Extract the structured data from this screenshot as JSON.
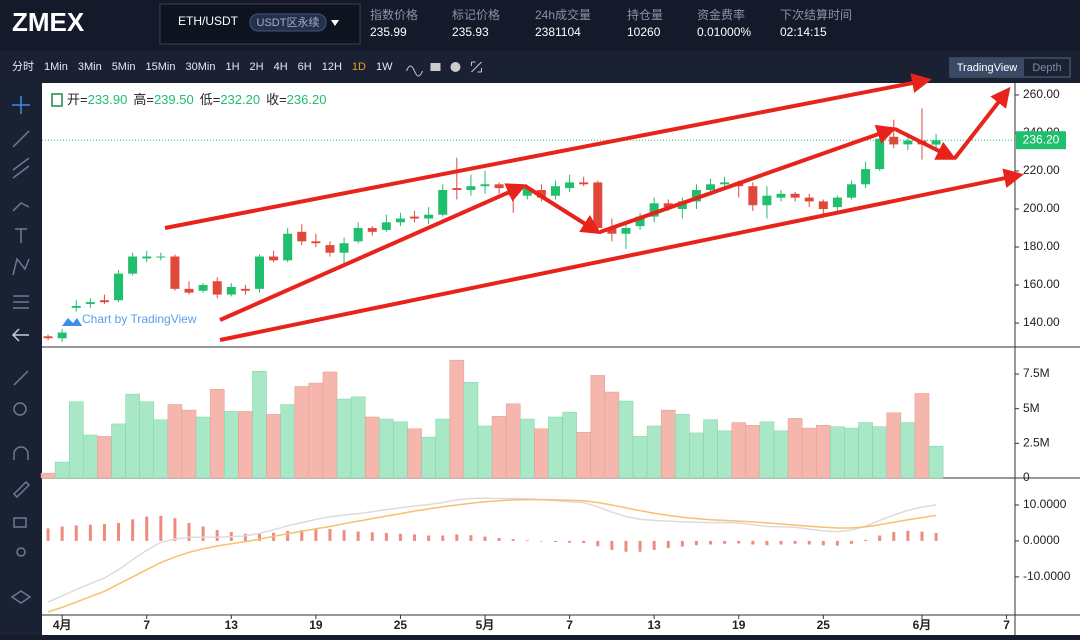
{
  "header": {
    "logo": "ZMEX",
    "symbol": "ETH/USDT",
    "contract": "USDT区永续",
    "stats": [
      {
        "label": "指数价格",
        "value": "235.99"
      },
      {
        "label": "标记价格",
        "value": "235.93"
      },
      {
        "label": "24h成交量",
        "value": "2381104"
      },
      {
        "label": "持仓量",
        "value": "10260"
      },
      {
        "label": "资金费率",
        "value": "0.01000%"
      },
      {
        "label": "下次结算时间",
        "value": "02:14:15"
      }
    ]
  },
  "toolbar": {
    "intervals": [
      "分时",
      "1Min",
      "3Min",
      "5Min",
      "15Min",
      "30Min",
      "1H",
      "2H",
      "4H",
      "6H",
      "12H",
      "1D",
      "1W"
    ],
    "active": "1D",
    "views": [
      "TradingView",
      "Depth"
    ],
    "active_view": "TradingView"
  },
  "chart": {
    "legend": [
      {
        "label": "开=",
        "value": "233.90"
      },
      {
        "label": "高=",
        "value": "239.50"
      },
      {
        "label": "低=",
        "value": "232.20"
      },
      {
        "label": "收=",
        "value": "236.20"
      }
    ],
    "watermark": "Chart by TradingView",
    "last_price_label": "236.20",
    "xlim": [
      -0.43,
      68.6
    ],
    "xticks": [
      {
        "value": 1,
        "label": "4月"
      },
      7,
      13,
      19,
      25,
      {
        "value": 31,
        "label": "5月"
      },
      {
        "value": 37,
        "label": "7"
      },
      {
        "value": 43,
        "label": "13"
      },
      {
        "value": 49,
        "label": "19"
      },
      {
        "value": 55,
        "label": "25"
      },
      {
        "value": 62,
        "label": "6月"
      },
      {
        "value": 68,
        "label": "7"
      }
    ],
    "price": {
      "ylim": [
        127.4,
        266.3
      ],
      "yticks": [
        {
          "value": 260,
          "label": "260.00"
        },
        {
          "value": 240,
          "label": "240.00"
        },
        {
          "value": 220,
          "label": "220.00"
        },
        {
          "value": 200,
          "label": "200.00"
        },
        {
          "value": 180,
          "label": "180.00"
        },
        {
          "value": 160,
          "label": "160.00"
        },
        {
          "value": 140,
          "label": "140.00"
        }
      ],
      "candles": [
        [
          133,
          134,
          131,
          132
        ],
        [
          132,
          137,
          130,
          135
        ],
        [
          148,
          152,
          146,
          149
        ],
        [
          150,
          153,
          148,
          151
        ],
        [
          152,
          155,
          150,
          151
        ],
        [
          152,
          168,
          151,
          166
        ],
        [
          166,
          177,
          165,
          175
        ],
        [
          174,
          178,
          172,
          175
        ],
        [
          175,
          177,
          173,
          175
        ],
        [
          175,
          176,
          157,
          158
        ],
        [
          158,
          162,
          155,
          156
        ],
        [
          157,
          161,
          156,
          160
        ],
        [
          162,
          164,
          153,
          155
        ],
        [
          155,
          161,
          154,
          159
        ],
        [
          158,
          160,
          155,
          157
        ],
        [
          158,
          176,
          156,
          175
        ],
        [
          175,
          178,
          172,
          173
        ],
        [
          173,
          190,
          172,
          187
        ],
        [
          188,
          192,
          181,
          183
        ],
        [
          183,
          187,
          180,
          182
        ],
        [
          181,
          183,
          175,
          177
        ],
        [
          177,
          185,
          170,
          182
        ],
        [
          183,
          193,
          182,
          190
        ],
        [
          190,
          191,
          186,
          188
        ],
        [
          189,
          197,
          188,
          193
        ],
        [
          193,
          198,
          191,
          195
        ],
        [
          196,
          199,
          193,
          195
        ],
        [
          195,
          201,
          192,
          197
        ],
        [
          197,
          213,
          196,
          210
        ],
        [
          211,
          227,
          205,
          210
        ],
        [
          210,
          218,
          207,
          212
        ],
        [
          212,
          220,
          208,
          213
        ],
        [
          213,
          214,
          208,
          211
        ],
        [
          210,
          213,
          198,
          207
        ],
        [
          207,
          212,
          205,
          211
        ],
        [
          210,
          213,
          204,
          206
        ],
        [
          207,
          215,
          205,
          212
        ],
        [
          211,
          218,
          209,
          214
        ],
        [
          214,
          217,
          212,
          213
        ],
        [
          214,
          215,
          187,
          190
        ],
        [
          190,
          195,
          183,
          187
        ],
        [
          187,
          192,
          179,
          190
        ],
        [
          191,
          198,
          189,
          196
        ],
        [
          196,
          206,
          193,
          203
        ],
        [
          203,
          205,
          199,
          201
        ],
        [
          200,
          206,
          195,
          204
        ],
        [
          204,
          213,
          200,
          210
        ],
        [
          210,
          216,
          207,
          213
        ],
        [
          213,
          217,
          210,
          214
        ],
        [
          214,
          215,
          206,
          212
        ],
        [
          212,
          214,
          199,
          202
        ],
        [
          202,
          212,
          195,
          207
        ],
        [
          206,
          210,
          204,
          208
        ],
        [
          208,
          209,
          204,
          206
        ],
        [
          206,
          208,
          201,
          204
        ],
        [
          204,
          205,
          197,
          200
        ],
        [
          201,
          207,
          199,
          206
        ],
        [
          206,
          215,
          205,
          213
        ],
        [
          213,
          225,
          211,
          221
        ],
        [
          221,
          240,
          220,
          237
        ],
        [
          238,
          247,
          232,
          234
        ],
        [
          234,
          240,
          231,
          236
        ],
        [
          236,
          253,
          226,
          234
        ],
        [
          233.9,
          239.5,
          232.2,
          236.2
        ]
      ]
    },
    "volume": {
      "ylim": [
        0,
        9.45
      ],
      "yticks": [
        {
          "value": 7.5,
          "label": "7.5M"
        },
        {
          "value": 5,
          "label": "5M"
        },
        {
          "value": 2.5,
          "label": "2.5M"
        },
        0
      ],
      "values": [
        0.35,
        1.15,
        5.5,
        3.1,
        3.0,
        3.9,
        6.05,
        5.5,
        4.2,
        5.3,
        4.9,
        4.4,
        6.4,
        4.8,
        4.8,
        7.7,
        4.6,
        5.3,
        6.6,
        6.85,
        7.65,
        5.7,
        5.85,
        4.4,
        4.25,
        4.05,
        3.55,
        2.95,
        4.25,
        8.5,
        6.9,
        3.75,
        4.45,
        5.35,
        4.25,
        3.55,
        4.4,
        4.75,
        3.3,
        7.4,
        6.2,
        5.55,
        3.0,
        3.75,
        4.9,
        4.6,
        3.25,
        4.2,
        3.4,
        4.0,
        3.8,
        4.05,
        3.4,
        4.3,
        3.6,
        3.8,
        3.7,
        3.6,
        4.0,
        3.7,
        4.7,
        4.0,
        6.1,
        2.3
      ]
    },
    "macd": {
      "ylim": [
        -20.6,
        17.5
      ],
      "yticks": [
        {
          "value": 10,
          "label": "10.0000"
        },
        {
          "value": 0,
          "label": "0.0000"
        },
        {
          "value": -10,
          "label": "-10.0000"
        }
      ],
      "hist": [
        3.5,
        4,
        4.3,
        4.5,
        4.7,
        5,
        6,
        6.8,
        7,
        6.3,
        5,
        4,
        3,
        2.5,
        2,
        2,
        2.3,
        2.8,
        3,
        3.2,
        3.3,
        3,
        2.6,
        2.4,
        2.2,
        2,
        1.8,
        1.5,
        1.5,
        1.8,
        1.6,
        1.2,
        0.8,
        0.5,
        0.2,
        0,
        -0.3,
        -0.5,
        -0.6,
        -1.5,
        -2.5,
        -3,
        -3,
        -2.5,
        -2,
        -1.6,
        -1.2,
        -1,
        -0.8,
        -0.7,
        -1,
        -1.2,
        -1,
        -0.8,
        -1,
        -1.2,
        -1.3,
        -0.8,
        0.3,
        1.5,
        2.5,
        2.8,
        2.6,
        2.2
      ],
      "dif": [
        -17,
        -15.3,
        -13.5,
        -11.9,
        -10.3,
        -8,
        -5.2,
        -2.6,
        -0.4,
        0.5,
        1,
        1,
        1,
        1.2,
        1.4,
        2.1,
        3.1,
        4.2,
        5.1,
        6,
        6.7,
        7.2,
        7.6,
        8.1,
        8.7,
        9.2,
        9.7,
        10.1,
        10.7,
        11.4,
        11.8,
        11.9,
        11.8,
        11.8,
        11.7,
        11.5,
        11.2,
        10.9,
        10.7,
        9.5,
        8,
        6.8,
        6,
        5.7,
        5.5,
        5.3,
        5.2,
        5.1,
        5.1,
        5,
        4.5,
        4,
        3.9,
        3.8,
        3.3,
        2.8,
        2.6,
        3,
        4.1,
        5.7,
        7.2,
        8.5,
        9.4,
        10
      ],
      "dea": [
        -19.7,
        -18.5,
        -17,
        -15.5,
        -14,
        -12,
        -10,
        -8,
        -6,
        -4.5,
        -3.2,
        -2.2,
        -1.4,
        -0.8,
        -0.2,
        0.5,
        1.3,
        2,
        2.7,
        3.4,
        4,
        4.8,
        5.5,
        6.2,
        6.9,
        7.6,
        8.3,
        8.9,
        9.5,
        10,
        10.5,
        10.9,
        11.2,
        11.4,
        11.5,
        11.5,
        11.4,
        11.3,
        11.2,
        10.7,
        10,
        9.2,
        8.4,
        7.7,
        7.1,
        6.6,
        6.2,
        5.9,
        5.7,
        5.5,
        5.3,
        5,
        4.7,
        4.4,
        4.1,
        3.8,
        3.6,
        3.6,
        3.9,
        4.5,
        5.2,
        5.9,
        6.5,
        7.1
      ]
    }
  }
}
